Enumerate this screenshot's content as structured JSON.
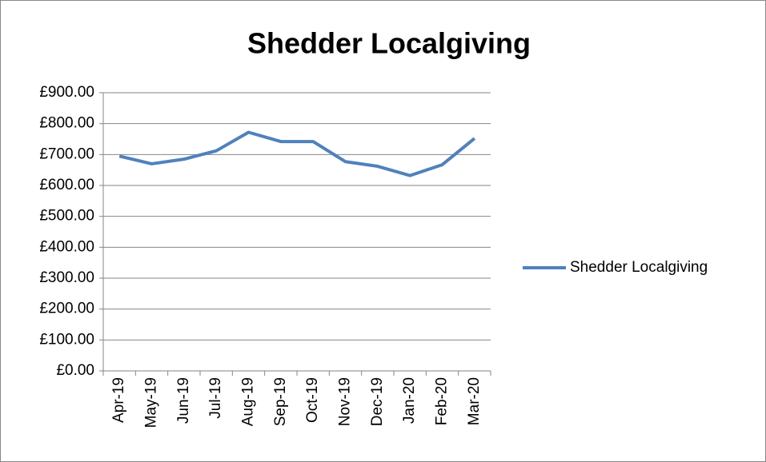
{
  "chart_data": {
    "type": "line",
    "title": "Shedder  Localgiving",
    "categories": [
      "Apr-19",
      "May-19",
      "Jun-19",
      "Jul-19",
      "Aug-19",
      "Sep-19",
      "Oct-19",
      "Nov-19",
      "Dec-19",
      "Jan-20",
      "Feb-20",
      "Mar-20"
    ],
    "series": [
      {
        "name": "Shedder  Localgiving",
        "color": "#4f81bd",
        "values": [
          695,
          670,
          685,
          712,
          772,
          742,
          742,
          677,
          662,
          632,
          667,
          752
        ]
      }
    ],
    "ylim": [
      0,
      900
    ],
    "yticks": [
      {
        "value": 0,
        "label": "£0.00"
      },
      {
        "value": 100,
        "label": "£100.00"
      },
      {
        "value": 200,
        "label": "£200.00"
      },
      {
        "value": 300,
        "label": "£300.00"
      },
      {
        "value": 400,
        "label": "£400.00"
      },
      {
        "value": 500,
        "label": "£500.00"
      },
      {
        "value": 600,
        "label": "£600.00"
      },
      {
        "value": 700,
        "label": "£700.00"
      },
      {
        "value": 800,
        "label": "£800.00"
      },
      {
        "value": 900,
        "label": "£900.00"
      }
    ],
    "grid": true,
    "legend": "right"
  }
}
